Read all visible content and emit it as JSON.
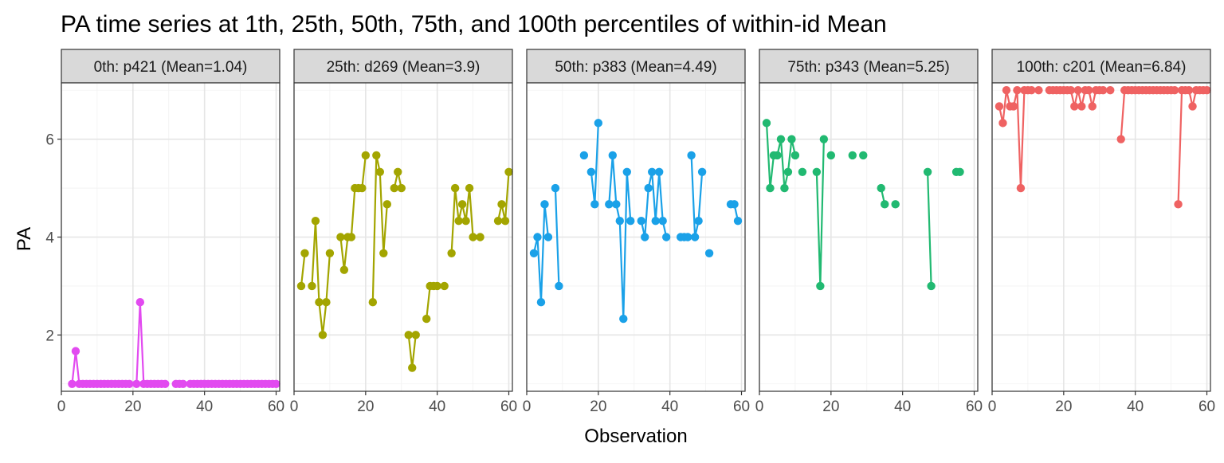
{
  "chart_data": {
    "type": "line",
    "title": "PA time series at 1th, 25th, 50th, 75th, and 100th percentiles of within-id Mean",
    "xlabel": "Observation",
    "ylabel": "PA",
    "xlim": [
      0,
      61
    ],
    "ylim": [
      0.85,
      7.15
    ],
    "x_ticks": [
      0,
      20,
      40,
      60
    ],
    "y_ticks": [
      2,
      4,
      6
    ],
    "grid": true,
    "panels": [
      {
        "strip": "0th: p421 (Mean=1.04)",
        "color": "#E24AF0",
        "segments": [
          [
            [
              3,
              1
            ],
            [
              4,
              1.67
            ],
            [
              5,
              1
            ],
            [
              6,
              1
            ],
            [
              7,
              1
            ],
            [
              8,
              1
            ],
            [
              9,
              1
            ],
            [
              10,
              1
            ],
            [
              11,
              1
            ],
            [
              12,
              1
            ],
            [
              13,
              1
            ],
            [
              14,
              1
            ],
            [
              15,
              1
            ],
            [
              16,
              1
            ],
            [
              17,
              1
            ],
            [
              18,
              1
            ],
            [
              19,
              1
            ],
            [
              21,
              1
            ],
            [
              22,
              2.67
            ],
            [
              23,
              1
            ],
            [
              24,
              1
            ],
            [
              25,
              1
            ],
            [
              26,
              1
            ],
            [
              27,
              1
            ],
            [
              28,
              1
            ],
            [
              29,
              1
            ]
          ],
          [
            [
              32,
              1
            ],
            [
              33,
              1
            ],
            [
              34,
              1
            ]
          ],
          [
            [
              36,
              1
            ],
            [
              37,
              1
            ],
            [
              38,
              1
            ],
            [
              39,
              1
            ],
            [
              40,
              1
            ],
            [
              41,
              1
            ],
            [
              42,
              1
            ],
            [
              43,
              1
            ],
            [
              44,
              1
            ],
            [
              45,
              1
            ],
            [
              46,
              1
            ],
            [
              47,
              1
            ],
            [
              48,
              1
            ],
            [
              49,
              1
            ],
            [
              50,
              1
            ],
            [
              51,
              1
            ],
            [
              52,
              1
            ],
            [
              53,
              1
            ],
            [
              54,
              1
            ],
            [
              55,
              1
            ],
            [
              56,
              1
            ],
            [
              57,
              1
            ],
            [
              58,
              1
            ],
            [
              59,
              1
            ],
            [
              60,
              1
            ]
          ]
        ]
      },
      {
        "strip": "25th: d269 (Mean=3.9)",
        "color": "#A3A500",
        "segments": [
          [
            [
              2,
              3
            ],
            [
              3,
              3.67
            ]
          ],
          [
            [
              5,
              3
            ],
            [
              6,
              4.33
            ],
            [
              7,
              2.67
            ],
            [
              8,
              2
            ],
            [
              9,
              2.67
            ],
            [
              10,
              3.67
            ]
          ],
          [
            [
              13,
              4
            ],
            [
              14,
              3.33
            ],
            [
              15,
              4
            ],
            [
              16,
              4
            ],
            [
              17,
              5
            ],
            [
              18,
              5
            ],
            [
              19,
              5
            ],
            [
              20,
              5.67
            ]
          ],
          [
            [
              22,
              2.67
            ],
            [
              23,
              5.67
            ],
            [
              24,
              5.33
            ],
            [
              25,
              3.67
            ],
            [
              26,
              4.67
            ]
          ],
          [
            [
              28,
              5
            ],
            [
              29,
              5.33
            ],
            [
              30,
              5
            ]
          ],
          [
            [
              32,
              2
            ],
            [
              33,
              1.33
            ],
            [
              34,
              2
            ]
          ],
          [
            [
              37,
              2.33
            ],
            [
              38,
              3
            ],
            [
              39,
              3
            ],
            [
              40,
              3
            ]
          ],
          [
            [
              42,
              3
            ]
          ],
          [
            [
              44,
              3.67
            ],
            [
              45,
              5
            ],
            [
              46,
              4.33
            ],
            [
              47,
              4.67
            ],
            [
              48,
              4.33
            ],
            [
              49,
              5
            ],
            [
              50,
              4
            ]
          ],
          [
            [
              52,
              4
            ]
          ],
          [
            [
              57,
              4.33
            ],
            [
              58,
              4.67
            ],
            [
              59,
              4.33
            ],
            [
              60,
              5.33
            ]
          ]
        ]
      },
      {
        "strip": "50th: p383 (Mean=4.49)",
        "color": "#1AA1E8",
        "segments": [
          [
            [
              2,
              3.67
            ],
            [
              3,
              4
            ],
            [
              4,
              2.67
            ],
            [
              5,
              4.67
            ],
            [
              6,
              4
            ]
          ],
          [
            [
              8,
              5
            ],
            [
              9,
              3
            ]
          ],
          [
            [
              16,
              5.67
            ]
          ],
          [
            [
              18,
              5.33
            ],
            [
              19,
              4.67
            ],
            [
              20,
              6.33
            ]
          ],
          [
            [
              23,
              4.67
            ],
            [
              24,
              5.67
            ],
            [
              25,
              4.67
            ],
            [
              26,
              4.33
            ],
            [
              27,
              2.33
            ],
            [
              28,
              5.33
            ],
            [
              29,
              4.33
            ]
          ],
          [
            [
              32,
              4.33
            ],
            [
              33,
              4
            ],
            [
              34,
              5
            ],
            [
              35,
              5.33
            ],
            [
              36,
              4.33
            ],
            [
              37,
              5.33
            ],
            [
              38,
              4.33
            ],
            [
              39,
              4
            ]
          ],
          [
            [
              43,
              4
            ],
            [
              44,
              4
            ],
            [
              45,
              4
            ]
          ],
          [
            [
              46,
              5.67
            ],
            [
              47,
              4
            ],
            [
              48,
              4.33
            ],
            [
              49,
              5.33
            ]
          ],
          [
            [
              51,
              3.67
            ]
          ],
          [
            [
              57,
              4.67
            ],
            [
              58,
              4.67
            ],
            [
              59,
              4.33
            ]
          ]
        ]
      },
      {
        "strip": "75th: p343 (Mean=5.25)",
        "color": "#21B971",
        "segments": [
          [
            [
              2,
              6.33
            ],
            [
              3,
              5
            ],
            [
              4,
              5.67
            ],
            [
              5,
              5.67
            ],
            [
              6,
              6
            ],
            [
              7,
              5
            ],
            [
              8,
              5.33
            ],
            [
              9,
              6
            ],
            [
              10,
              5.67
            ]
          ],
          [
            [
              12,
              5.33
            ]
          ],
          [
            [
              16,
              5.33
            ],
            [
              17,
              3
            ],
            [
              18,
              6
            ]
          ],
          [
            [
              20,
              5.67
            ]
          ],
          [
            [
              26,
              5.67
            ]
          ],
          [
            [
              29,
              5.67
            ]
          ],
          [
            [
              34,
              5
            ],
            [
              35,
              4.67
            ]
          ],
          [
            [
              38,
              4.67
            ]
          ],
          [
            [
              47,
              5.33
            ],
            [
              48,
              3
            ]
          ],
          [
            [
              55,
              5.33
            ],
            [
              56,
              5.33
            ]
          ]
        ]
      },
      {
        "strip": "100th: c201 (Mean=6.84)",
        "color": "#EF6262",
        "segments": [
          [
            [
              2,
              6.67
            ],
            [
              3,
              6.33
            ],
            [
              4,
              7
            ],
            [
              5,
              6.67
            ],
            [
              6,
              6.67
            ],
            [
              7,
              7
            ],
            [
              8,
              5
            ],
            [
              9,
              7
            ],
            [
              10,
              7
            ],
            [
              11,
              7
            ]
          ],
          [
            [
              13,
              7
            ]
          ],
          [
            [
              16,
              7
            ],
            [
              17,
              7
            ],
            [
              18,
              7
            ],
            [
              19,
              7
            ],
            [
              20,
              7
            ],
            [
              21,
              7
            ],
            [
              22,
              7
            ],
            [
              23,
              6.67
            ],
            [
              24,
              7
            ],
            [
              25,
              6.67
            ],
            [
              26,
              7
            ],
            [
              27,
              7
            ],
            [
              28,
              6.67
            ],
            [
              29,
              7
            ],
            [
              30,
              7
            ],
            [
              31,
              7
            ]
          ],
          [
            [
              33,
              7
            ]
          ],
          [
            [
              36,
              6
            ],
            [
              37,
              7
            ],
            [
              38,
              7
            ],
            [
              39,
              7
            ],
            [
              40,
              7
            ],
            [
              41,
              7
            ],
            [
              42,
              7
            ],
            [
              43,
              7
            ],
            [
              44,
              7
            ],
            [
              45,
              7
            ],
            [
              46,
              7
            ],
            [
              47,
              7
            ],
            [
              48,
              7
            ],
            [
              49,
              7
            ],
            [
              50,
              7
            ],
            [
              51,
              7
            ]
          ],
          [
            [
              52,
              4.67
            ],
            [
              53,
              7
            ],
            [
              54,
              7
            ],
            [
              55,
              7
            ],
            [
              56,
              6.67
            ],
            [
              57,
              7
            ],
            [
              58,
              7
            ],
            [
              59,
              7
            ],
            [
              60,
              7
            ]
          ]
        ]
      }
    ]
  }
}
